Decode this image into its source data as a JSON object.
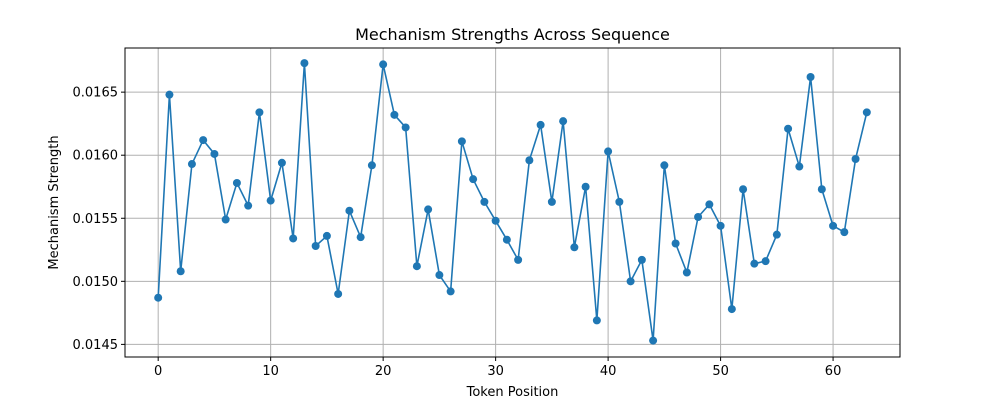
{
  "chart_data": {
    "type": "line",
    "title": "Mechanism Strengths Across Sequence",
    "xlabel": "Token Position",
    "ylabel": "Mechanism Strength",
    "xlim": [
      -2.95,
      65.95
    ],
    "ylim": [
      0.0144,
      0.01685
    ],
    "x_ticks": [
      0,
      10,
      20,
      30,
      40,
      50,
      60
    ],
    "x_tick_labels": [
      "0",
      "10",
      "20",
      "30",
      "40",
      "50",
      "60"
    ],
    "y_ticks": [
      0.0145,
      0.015,
      0.0155,
      0.016,
      0.0165
    ],
    "y_tick_labels": [
      "0.0145",
      "0.0150",
      "0.0155",
      "0.0160",
      "0.0165"
    ],
    "grid": true,
    "marker": "circle",
    "colors": {
      "line": "#1f77b4",
      "grid": "#b0b0b0",
      "axes": "#000000"
    },
    "series": [
      {
        "x": [
          0,
          1,
          2,
          3,
          4,
          5,
          6,
          7,
          8,
          9,
          10,
          11,
          12,
          13,
          14,
          15,
          16,
          17,
          18,
          19,
          20,
          21,
          22,
          23,
          24,
          25,
          26,
          27,
          28,
          29,
          30,
          31,
          32,
          33,
          34,
          35,
          36,
          37,
          38,
          39,
          40,
          41,
          42,
          43,
          44,
          45,
          46,
          47,
          48,
          49,
          50,
          51,
          52,
          53,
          54,
          55,
          56,
          57,
          58,
          59,
          60,
          61,
          62,
          63
        ],
        "values": [
          0.01487,
          0.01648,
          0.01508,
          0.01593,
          0.01612,
          0.01601,
          0.01549,
          0.01578,
          0.0156,
          0.01634,
          0.01564,
          0.01594,
          0.01534,
          0.01673,
          0.01528,
          0.01536,
          0.0149,
          0.01556,
          0.01535,
          0.01592,
          0.01672,
          0.01632,
          0.01622,
          0.01512,
          0.01557,
          0.01505,
          0.01492,
          0.01611,
          0.01581,
          0.01563,
          0.01548,
          0.01533,
          0.01517,
          0.01596,
          0.01624,
          0.01563,
          0.01627,
          0.01527,
          0.01575,
          0.01469,
          0.01603,
          0.01563,
          0.015,
          0.01517,
          0.01453,
          0.01592,
          0.0153,
          0.01507,
          0.01551,
          0.01561,
          0.01544,
          0.01478,
          0.01573,
          0.01514,
          0.01516,
          0.01537,
          0.01621,
          0.01591,
          0.01662,
          0.01573,
          0.01544,
          0.01539,
          0.01597,
          0.01634
        ]
      }
    ]
  }
}
